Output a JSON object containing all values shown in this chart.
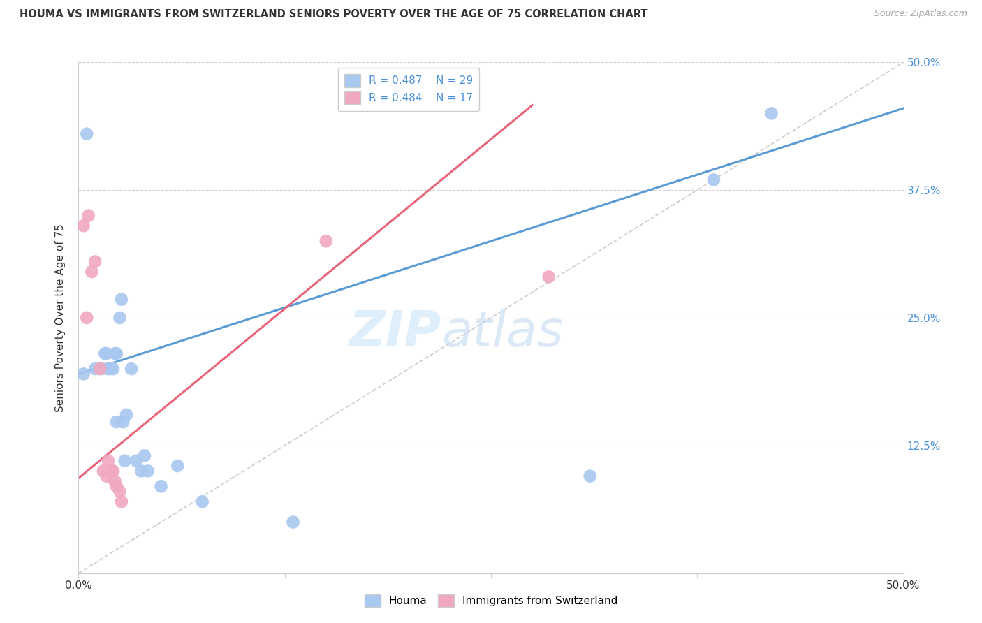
{
  "title": "HOUMA VS IMMIGRANTS FROM SWITZERLAND SENIORS POVERTY OVER THE AGE OF 75 CORRELATION CHART",
  "source": "Source: ZipAtlas.com",
  "ylabel": "Seniors Poverty Over the Age of 75",
  "xlabel_houma": "Houma",
  "xlabel_swiss": "Immigrants from Switzerland",
  "xmin": 0.0,
  "xmax": 0.5,
  "ymin": 0.0,
  "ymax": 0.5,
  "houma_R": 0.487,
  "houma_N": 29,
  "swiss_R": 0.484,
  "swiss_N": 17,
  "houma_color": "#a8c8f0",
  "swiss_color": "#f0a8c0",
  "houma_line_color": "#5b9bd5",
  "swiss_line_color": "#e8647a",
  "diagonal_color": "#cccccc",
  "watermark_zip": "ZIP",
  "watermark_atlas": "atlas",
  "houma_line_x0": 0.0,
  "houma_line_y0": 0.195,
  "houma_line_x1": 0.5,
  "houma_line_y1": 0.455,
  "swiss_line_x0": 0.0,
  "swiss_line_y0": 0.093,
  "swiss_line_x1": 0.275,
  "swiss_line_y1": 0.458,
  "houma_x": [
    0.003,
    0.005,
    0.01,
    0.014,
    0.016,
    0.017,
    0.018,
    0.019,
    0.021,
    0.022,
    0.023,
    0.023,
    0.025,
    0.026,
    0.027,
    0.028,
    0.029,
    0.032,
    0.035,
    0.038,
    0.04,
    0.042,
    0.05,
    0.06,
    0.075,
    0.13,
    0.31,
    0.385,
    0.42
  ],
  "houma_y": [
    0.195,
    0.43,
    0.2,
    0.2,
    0.215,
    0.215,
    0.2,
    0.2,
    0.2,
    0.215,
    0.215,
    0.148,
    0.25,
    0.268,
    0.148,
    0.11,
    0.155,
    0.2,
    0.11,
    0.1,
    0.115,
    0.1,
    0.085,
    0.105,
    0.07,
    0.05,
    0.095,
    0.385,
    0.45
  ],
  "swiss_x": [
    0.003,
    0.005,
    0.006,
    0.008,
    0.01,
    0.013,
    0.015,
    0.017,
    0.018,
    0.02,
    0.021,
    0.022,
    0.023,
    0.025,
    0.026,
    0.15,
    0.285
  ],
  "swiss_y": [
    0.34,
    0.25,
    0.35,
    0.295,
    0.305,
    0.2,
    0.1,
    0.095,
    0.11,
    0.1,
    0.1,
    0.09,
    0.085,
    0.08,
    0.07,
    0.325,
    0.29
  ]
}
